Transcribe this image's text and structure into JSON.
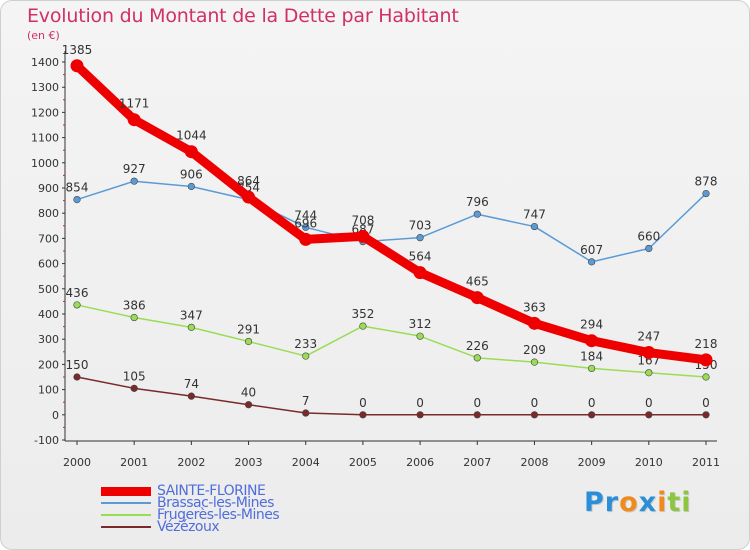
{
  "title": "Evolution du Montant de la Dette par Habitant",
  "unit": "(en €)",
  "logo": {
    "letters": [
      "P",
      "r",
      "o",
      "x",
      "i",
      "t",
      "i"
    ],
    "colors": [
      "#2a8fd8",
      "#2a8fd8",
      "#f08a1e",
      "#2a8fd8",
      "#f08a1e",
      "#8cc63f",
      "#8cc63f"
    ]
  },
  "chart_data": {
    "type": "line",
    "x": [
      "2000",
      "2001",
      "2002",
      "2003",
      "2004",
      "2005",
      "2006",
      "2007",
      "2008",
      "2009",
      "2010",
      "2011"
    ],
    "ylim": [
      -100,
      1400
    ],
    "yticks": [
      "-100",
      "0",
      "100",
      "200",
      "300",
      "400",
      "500",
      "600",
      "700",
      "800",
      "900",
      "1000",
      "1100",
      "1200",
      "1300",
      "1400"
    ],
    "grid": false,
    "legend_position": "bottom-left",
    "series": [
      {
        "name": "SAINTE-FLORINE",
        "color": "#ee0000",
        "values": [
          1385,
          1171,
          1044,
          864,
          696,
          708,
          564,
          465,
          363,
          294,
          247,
          218
        ],
        "labels": [
          "1385",
          "1171",
          "1044",
          "864",
          "696",
          "708",
          "564",
          "465",
          "363",
          "294",
          "247",
          "218"
        ]
      },
      {
        "name": "Brassac-les-Mines",
        "color": "#5b9bd5",
        "values": [
          854,
          927,
          906,
          854,
          744,
          687,
          703,
          796,
          747,
          607,
          660,
          878
        ],
        "labels": [
          "854",
          "927",
          "906",
          "854",
          "744",
          "687",
          "703",
          "796",
          "747",
          "607",
          "660",
          "878"
        ]
      },
      {
        "name": "Frugerès-les-Mines",
        "color": "#99dd55",
        "values": [
          436,
          386,
          347,
          291,
          233,
          352,
          312,
          226,
          209,
          184,
          167,
          150
        ],
        "labels": [
          "436",
          "386",
          "347",
          "291",
          "233",
          "352",
          "312",
          "226",
          "209",
          "184",
          "167",
          "150"
        ]
      },
      {
        "name": "Vézézoux",
        "color": "#7a2a2a",
        "values": [
          150,
          105,
          74,
          40,
          7,
          0,
          0,
          0,
          0,
          0,
          0,
          0
        ],
        "labels": [
          "150",
          "105",
          "74",
          "40",
          "7",
          "0",
          "0",
          "0",
          "0",
          "0",
          "0",
          "0"
        ]
      }
    ]
  }
}
